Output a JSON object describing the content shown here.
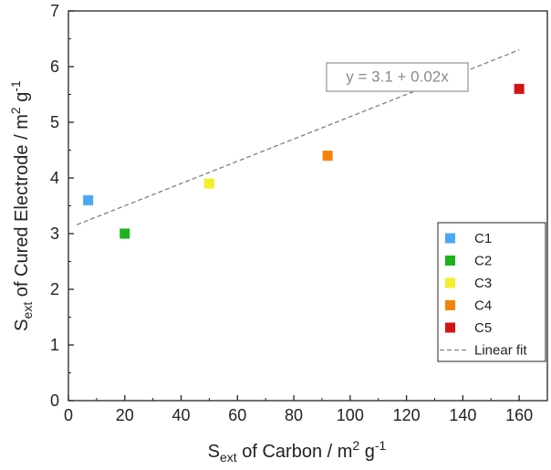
{
  "chart_data": {
    "type": "scatter",
    "title": "",
    "xlabel": {
      "main": "S",
      "sub": "ext",
      "rest": " of Carbon / m",
      "sup": "2",
      "tail": " g",
      "sup2": "-1"
    },
    "ylabel": {
      "main": "S",
      "sub": "ext",
      "rest": " of Cured Electrode / m",
      "sup": "2",
      "tail": " g",
      "sup2": "-1"
    },
    "xlim": [
      0,
      170
    ],
    "ylim": [
      0,
      7
    ],
    "xticks": [
      0,
      20,
      40,
      60,
      80,
      100,
      120,
      140,
      160
    ],
    "yticks": [
      0,
      1,
      2,
      3,
      4,
      5,
      6,
      7
    ],
    "grid": false,
    "legend_position": "bottom-right",
    "series": [
      {
        "name": "C1",
        "color": "#4da6f5",
        "points": [
          {
            "x": 7,
            "y": 3.6
          }
        ]
      },
      {
        "name": "C2",
        "color": "#1db31d",
        "points": [
          {
            "x": 20,
            "y": 3.0
          }
        ]
      },
      {
        "name": "C3",
        "color": "#f5ee2a",
        "points": [
          {
            "x": 50,
            "y": 3.9
          }
        ]
      },
      {
        "name": "C4",
        "color": "#f5820a",
        "points": [
          {
            "x": 92,
            "y": 4.4
          }
        ]
      },
      {
        "name": "C5",
        "color": "#d41414",
        "points": [
          {
            "x": 160,
            "y": 5.6
          }
        ]
      }
    ],
    "fit": {
      "name": "Linear fit",
      "intercept": 3.1,
      "slope": 0.02,
      "x_range": [
        3,
        160
      ],
      "color": "#808080",
      "equation": "y = 3.1 + 0.02x"
    }
  }
}
